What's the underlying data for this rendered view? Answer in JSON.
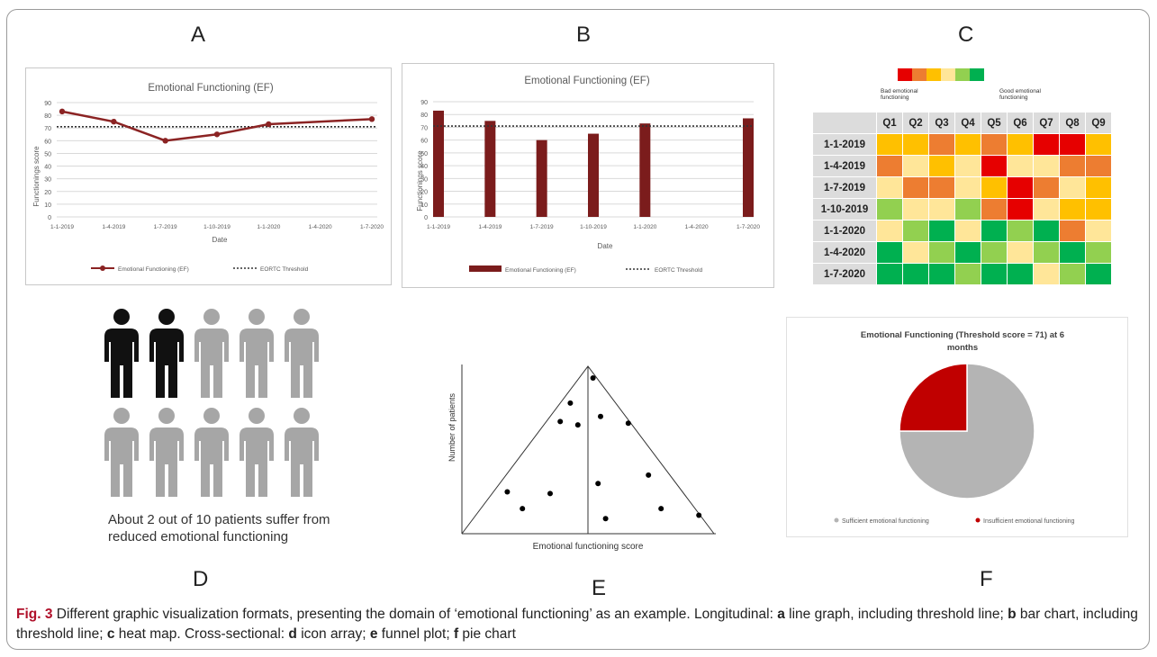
{
  "panel_letters": {
    "a": "A",
    "b": "B",
    "c": "C",
    "d": "D",
    "e": "E",
    "f": "F"
  },
  "caption": {
    "label": "Fig. 3",
    "text1": " Different graphic visualization formats, presenting the domain of ‘emotional functioning’ as an example. Longitudinal: ",
    "a": "a",
    "text2": " line graph, including threshold line; ",
    "b": "b",
    "text3": " bar chart, including threshold line; ",
    "c": "c",
    "text4": " heat map. Cross-sectional: ",
    "d": "d",
    "text5": " icon array; ",
    "e": "e",
    "text6": " funnel plot; ",
    "f": "f",
    "text7": " pie chart"
  },
  "colors": {
    "series": "#8b2323",
    "bar": "#7b1c1c",
    "pie_sufficient": "#b4b4b4",
    "pie_insufficient": "#c00000",
    "icon_dark": "#111111",
    "icon_light": "#a6a6a6"
  },
  "heat_colors": {
    "1": "#e60000",
    "2": "#ed7d31",
    "3": "#ffc000",
    "4": "#ffe699",
    "5": "#92d050",
    "6": "#00b050"
  },
  "chart_data": [
    {
      "type": "line",
      "title": "Emotional Functioning (EF)",
      "xlabel": "Date",
      "ylabel": "Functionings score",
      "ylim": [
        0,
        90
      ],
      "yticks": [
        0,
        10,
        20,
        30,
        40,
        50,
        60,
        70,
        80,
        90
      ],
      "categories": [
        "1-1-2019",
        "1-4-2019",
        "1-7-2019",
        "1-10-2019",
        "1-1-2020",
        "1-4-2020",
        "1-7-2020"
      ],
      "series": [
        {
          "name": "Emotional Functioning (EF)",
          "values": [
            83,
            75,
            60,
            65,
            73,
            null,
            77
          ]
        }
      ],
      "threshold": {
        "name": "EORTC Threshold",
        "value": 71
      },
      "grid": true,
      "legend": "bottom"
    },
    {
      "type": "bar",
      "title": "Emotional Functioning (EF)",
      "xlabel": "Date",
      "ylabel": "Functionings score",
      "ylim": [
        0,
        90
      ],
      "yticks": [
        0,
        10,
        20,
        30,
        40,
        50,
        60,
        70,
        80,
        90
      ],
      "categories": [
        "1-1-2019",
        "1-4-2019",
        "1-7-2019",
        "1-10-2019",
        "1-1-2020",
        "1-4-2020",
        "1-7-2020"
      ],
      "series": [
        {
          "name": "Emotional Functioning (EF)",
          "values": [
            83,
            75,
            60,
            65,
            73,
            null,
            77
          ]
        }
      ],
      "threshold": {
        "name": "EORTC Threshold",
        "value": 71
      },
      "grid": true,
      "legend": "bottom"
    },
    {
      "type": "heatmap",
      "scale_labels": {
        "low": "Bad emotional functioning",
        "high": "Good emotional functioning"
      },
      "columns": [
        "Q1",
        "Q2",
        "Q3",
        "Q4",
        "Q5",
        "Q6",
        "Q7",
        "Q8",
        "Q9"
      ],
      "rows": [
        "1-1-2019",
        "1-4-2019",
        "1-7-2019",
        "1-10-2019",
        "1-1-2020",
        "1-4-2020",
        "1-7-2020"
      ],
      "values": [
        [
          3,
          3,
          2,
          3,
          2,
          3,
          1,
          1,
          3
        ],
        [
          2,
          4,
          3,
          4,
          1,
          4,
          4,
          2,
          2
        ],
        [
          4,
          2,
          2,
          4,
          3,
          1,
          2,
          4,
          3
        ],
        [
          5,
          4,
          4,
          5,
          2,
          1,
          4,
          3,
          3
        ],
        [
          4,
          5,
          6,
          4,
          6,
          5,
          6,
          2,
          4
        ],
        [
          6,
          4,
          5,
          6,
          5,
          4,
          5,
          6,
          5
        ],
        [
          6,
          6,
          6,
          5,
          6,
          6,
          4,
          5,
          6
        ]
      ]
    },
    {
      "type": "icon-array",
      "total": 10,
      "highlighted": 2,
      "text_line1": "About 2 out of 10 patients suffer from",
      "text_line2": "reduced emotional functioning"
    },
    {
      "type": "scatter",
      "subtype": "funnel",
      "xlabel": "Emotional functioning score",
      "ylabel": "Number of patients",
      "points": [
        [
          0.52,
          0.93
        ],
        [
          0.43,
          0.78
        ],
        [
          0.55,
          0.7
        ],
        [
          0.39,
          0.67
        ],
        [
          0.46,
          0.65
        ],
        [
          0.66,
          0.66
        ],
        [
          0.54,
          0.3
        ],
        [
          0.74,
          0.35
        ],
        [
          0.18,
          0.25
        ],
        [
          0.35,
          0.24
        ],
        [
          0.24,
          0.15
        ],
        [
          0.79,
          0.15
        ],
        [
          0.94,
          0.11
        ],
        [
          0.57,
          0.09
        ]
      ]
    },
    {
      "type": "pie",
      "title": "Emotional Functioning (Threshold score = 71) at 6 months",
      "slices": [
        {
          "label": "Sufficient emotional functioning",
          "value": 75
        },
        {
          "label": "Insufficient emotional functioning",
          "value": 25
        }
      ],
      "legend": "bottom"
    }
  ]
}
